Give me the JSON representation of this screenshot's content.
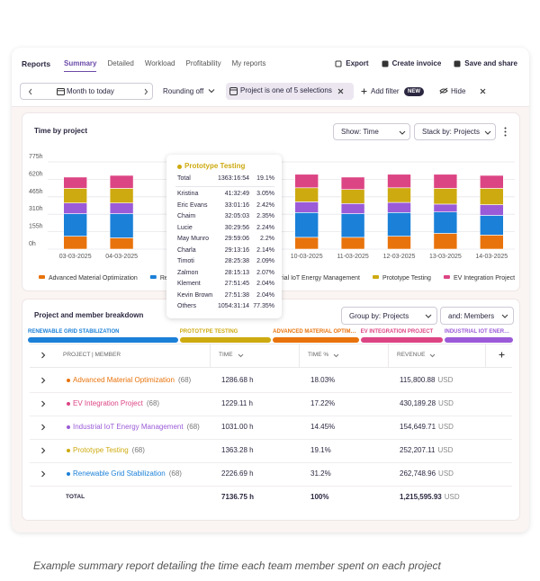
{
  "header": {
    "title": "Reports",
    "tabs": [
      "Summary",
      "Detailed",
      "Workload",
      "Profitability",
      "My reports"
    ],
    "actions": [
      "Export",
      "Create invoice",
      "Save and share"
    ]
  },
  "filters": {
    "date": "Month to today",
    "rounding": "Rounding off",
    "project": "Project is one of 5 selections",
    "add": "Add filter",
    "badge": "NEW",
    "hide": "Hide"
  },
  "chart_data": {
    "type": "bar",
    "stacked": true,
    "title": "Time by project",
    "controls": [
      "Show: Time",
      "Stack by: Projects"
    ],
    "categories": [
      "03-03-2025",
      "04-03-2025",
      null,
      null,
      null,
      "10-03-2025",
      "11-03-2025",
      "12-03-2025",
      "13-03-2025",
      "14-03-2025"
    ],
    "series": [
      {
        "name": "Advanced Material Optimization",
        "color": "#e8730c",
        "values": [
          115,
          100,
          null,
          null,
          null,
          105,
          105,
          115,
          140,
          125
        ]
      },
      {
        "name": "Renewable Grid Stabilization",
        "color": "#1b80d8",
        "values": [
          200,
          215,
          null,
          null,
          null,
          220,
          210,
          210,
          190,
          175
        ]
      },
      {
        "name": "Industrial IoT Energy Management",
        "color": "#9b5bd8",
        "values": [
          95,
          95,
          null,
          null,
          null,
          95,
          90,
          90,
          70,
          95
        ]
      },
      {
        "name": "Prototype Testing",
        "color": "#cdaa10",
        "values": [
          130,
          130,
          null,
          null,
          null,
          125,
          125,
          130,
          140,
          145
        ]
      },
      {
        "name": "EV Integration Project",
        "color": "#dc4584",
        "values": [
          100,
          115,
          null,
          null,
          null,
          120,
          110,
          120,
          125,
          115
        ]
      }
    ],
    "ylim": [
      0,
      775
    ],
    "yticks": [
      {
        "value": 0,
        "label": "0h"
      },
      {
        "value": 155,
        "label": "155h"
      },
      {
        "value": 310,
        "label": "310h"
      },
      {
        "value": 465,
        "label": "465h"
      },
      {
        "value": 620,
        "label": "620h"
      },
      {
        "value": 775,
        "label": "775h"
      }
    ],
    "grid": true
  },
  "tooltip": {
    "title": "Prototype Testing",
    "color": "#cdaa10",
    "total": {
      "name": "Total",
      "time": "1363:16:54",
      "percent": "19.1%"
    },
    "rows": [
      {
        "name": "Kristina",
        "time": "41:32:49",
        "percent": "3.05%"
      },
      {
        "name": "Eric Evans",
        "time": "33:01:16",
        "percent": "2.42%"
      },
      {
        "name": "Chaim",
        "time": "32:05:03",
        "percent": "2.35%"
      },
      {
        "name": "Lucie",
        "time": "30:29:56",
        "percent": "2.24%"
      },
      {
        "name": "May Munro",
        "time": "29:59:06",
        "percent": "2.2%"
      },
      {
        "name": "Charla",
        "time": "29:13:16",
        "percent": "2.14%"
      },
      {
        "name": "Timoti",
        "time": "28:25:38",
        "percent": "2.09%"
      },
      {
        "name": "Zalmon",
        "time": "28:15:13",
        "percent": "2.07%"
      },
      {
        "name": "Klement",
        "time": "27:51:45",
        "percent": "2.04%"
      },
      {
        "name": "Kevin Brown",
        "time": "27:51:38",
        "percent": "2.04%"
      },
      {
        "name": "Others",
        "time": "1054:31:14",
        "percent": "77.35%"
      }
    ]
  },
  "breakdown": {
    "title": "Project and member breakdown",
    "controls": [
      "Group by: Projects",
      "and: Members"
    ],
    "segments": [
      {
        "label": "RENEWABLE GRID STABILIZATION",
        "color": "#1b80d8",
        "percent": 31.2
      },
      {
        "label": "PROTOTYPE TESTING",
        "color": "#cdaa10",
        "percent": 19.1
      },
      {
        "label": "ADVANCED MATERIAL OPTIMIZATION",
        "color": "#e8730c",
        "percent": 18.03
      },
      {
        "label": "EV INTEGRATION PROJECT",
        "color": "#dc4584",
        "percent": 17.22
      },
      {
        "label": "INDUSTRIAL IOT ENERGY MANAGEMENT",
        "color": "#9b5bd8",
        "percent": 14.45
      }
    ],
    "columns": [
      "PROJECT | MEMBER",
      "TIME",
      "TIME %",
      "REVENUE"
    ],
    "rows": [
      {
        "project": "Advanced Material Optimization",
        "color": "#e8730c",
        "count": "(68)",
        "time": "1286.68 h",
        "percent": "18.03%",
        "revenue": "115,800.88",
        "currency": "USD"
      },
      {
        "project": "EV Integration Project",
        "color": "#dc4584",
        "count": "(68)",
        "time": "1229.11 h",
        "percent": "17.22%",
        "revenue": "430,189.28",
        "currency": "USD"
      },
      {
        "project": "Industrial IoT Energy Management",
        "color": "#9b5bd8",
        "count": "(68)",
        "time": "1031.00 h",
        "percent": "14.45%",
        "revenue": "154,649.71",
        "currency": "USD"
      },
      {
        "project": "Prototype Testing",
        "color": "#cdaa10",
        "count": "(68)",
        "time": "1363.28 h",
        "percent": "19.1%",
        "revenue": "252,207.11",
        "currency": "USD"
      },
      {
        "project": "Renewable Grid Stabilization",
        "color": "#1b80d8",
        "count": "(68)",
        "time": "2226.69 h",
        "percent": "31.2%",
        "revenue": "262,748.96",
        "currency": "USD"
      }
    ],
    "total": {
      "label": "TOTAL",
      "time": "7136.75 h",
      "percent": "100%",
      "revenue": "1,215,595.93",
      "currency": "USD"
    }
  },
  "caption": "Example summary report detailing the time each team member spent on each project"
}
